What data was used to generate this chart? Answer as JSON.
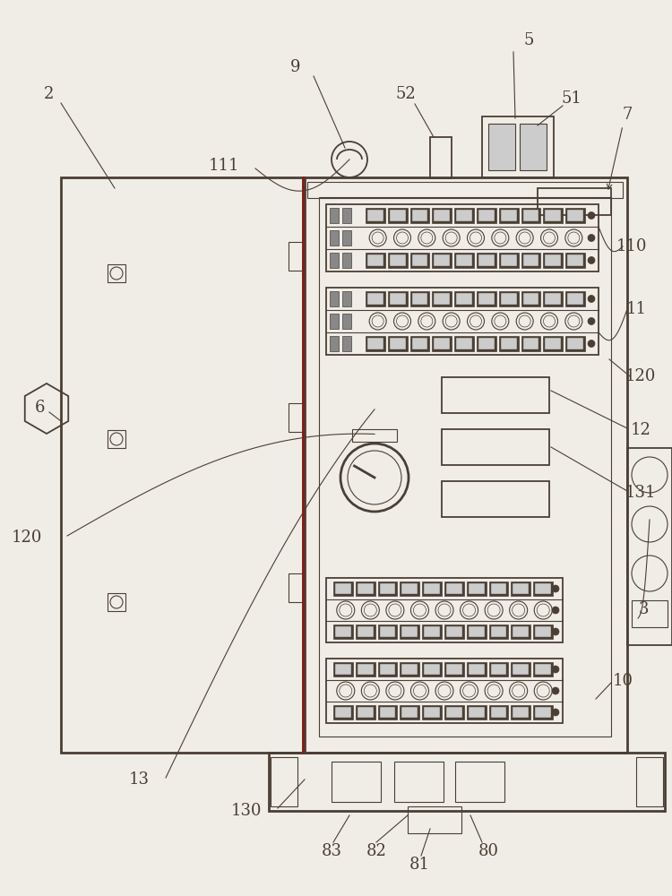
{
  "bg_color": "#f0ede6",
  "line_color": "#4a3f35",
  "dark_fill": "#4a3f35",
  "lw": 1.3,
  "lw_thick": 2.0,
  "lw_thin": 0.8,
  "fig_w": 7.5,
  "fig_h": 10.0
}
